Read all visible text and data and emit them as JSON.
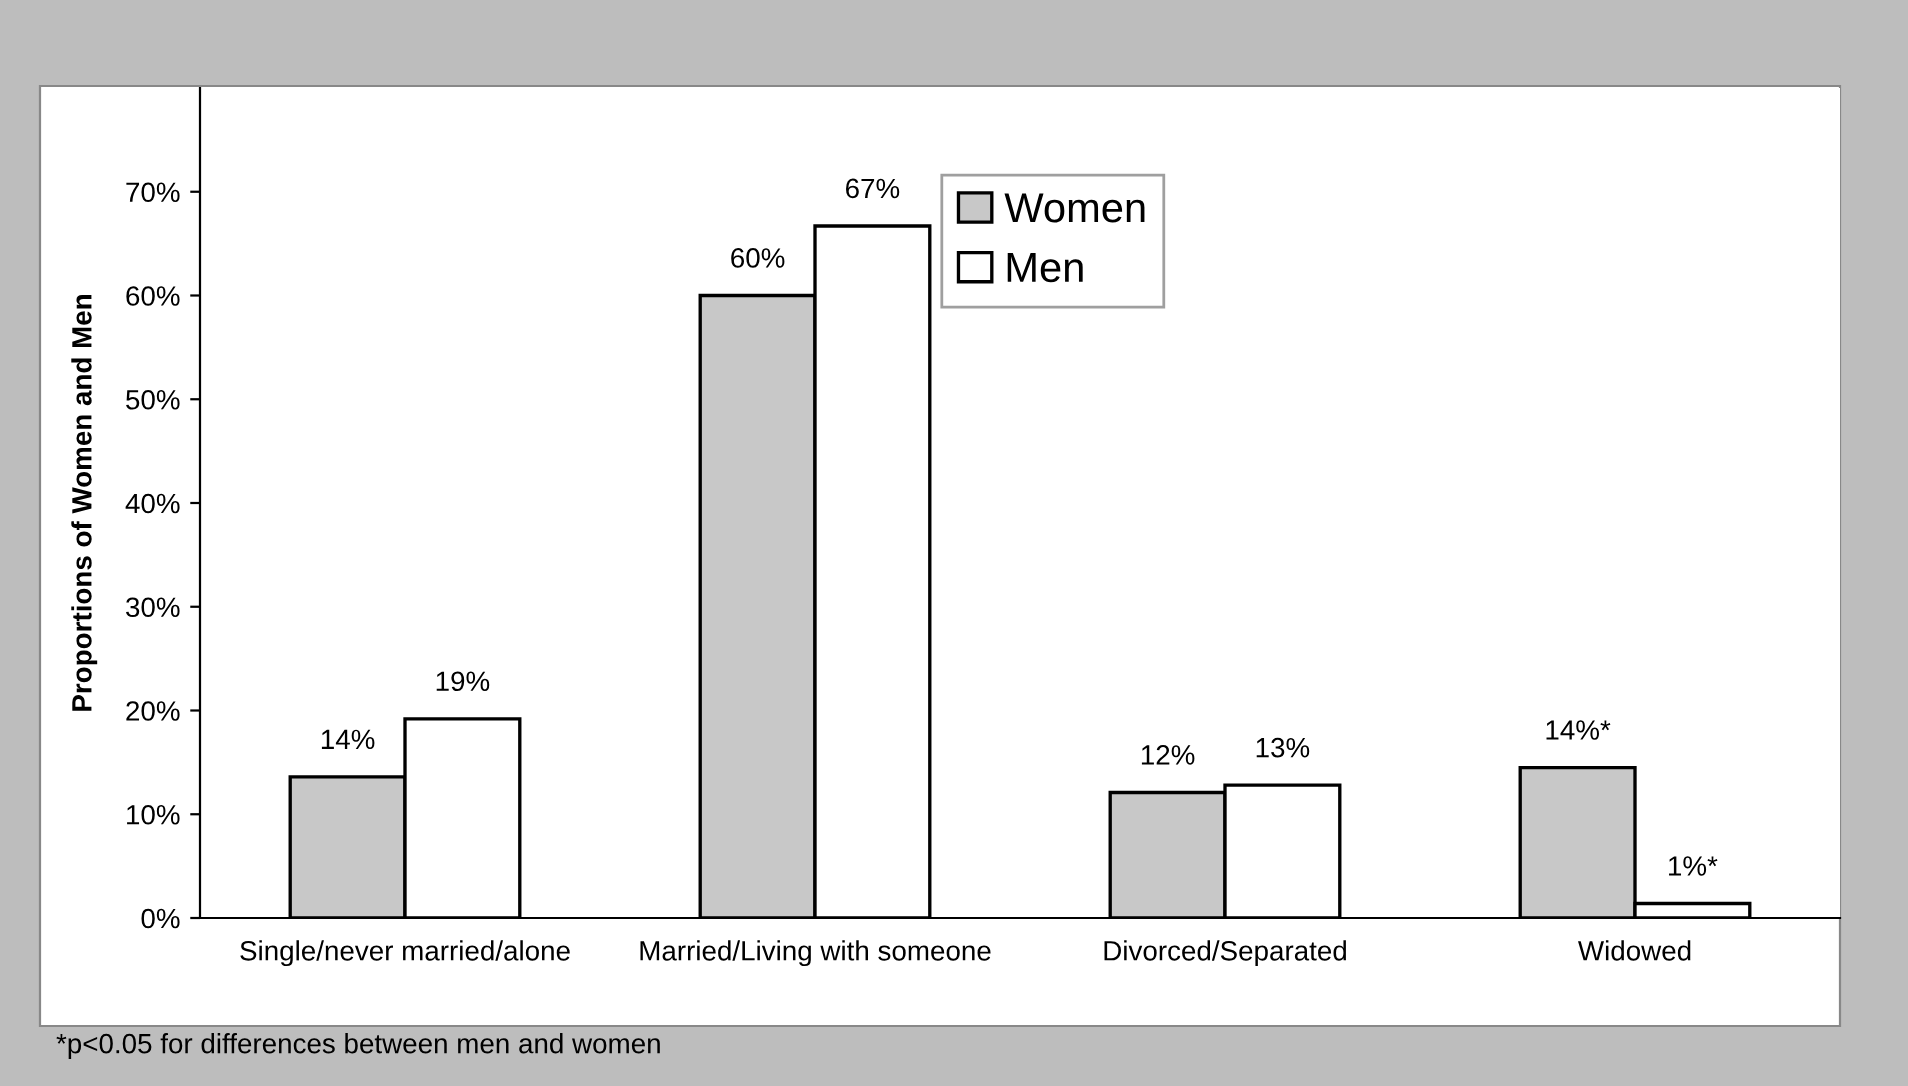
{
  "chart_data": {
    "type": "bar",
    "ylabel": "Proportions of Women and Men",
    "categories": [
      "Single/never married/alone",
      "Married/Living with someone",
      "Divorced/Separated",
      "Widowed"
    ],
    "series": [
      {
        "name": "Women",
        "color": "#c8c8c8",
        "values": [
          13.6,
          60,
          12.1,
          14.5
        ],
        "value_labels": [
          "14%",
          "60%",
          "12%",
          "14%*"
        ]
      },
      {
        "name": "Men",
        "color": "#ffffff",
        "values": [
          19.2,
          66.7,
          12.8,
          1.4
        ],
        "value_labels": [
          "19%",
          "67%",
          "13%",
          "1%*"
        ]
      }
    ],
    "ylim": [
      0,
      80
    ],
    "yticks": [
      {
        "value": 0,
        "label": "0%"
      },
      {
        "value": 10,
        "label": "10%"
      },
      {
        "value": 20,
        "label": "20%"
      },
      {
        "value": 30,
        "label": "30%"
      },
      {
        "value": 40,
        "label": "40%"
      },
      {
        "value": 50,
        "label": "50%"
      },
      {
        "value": 60,
        "label": "60%"
      },
      {
        "value": 70,
        "label": "70%"
      }
    ],
    "grid": false,
    "legend": "top",
    "annotations": [
      "*p<0.05 for differences between men and women"
    ]
  }
}
